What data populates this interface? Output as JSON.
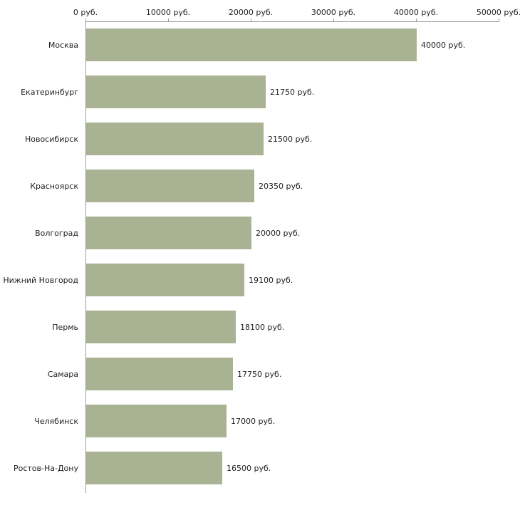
{
  "chart_data": {
    "type": "bar",
    "orientation": "horizontal",
    "title": "",
    "xlabel": "",
    "ylabel": "",
    "categories": [
      "Москва",
      "Екатеринбург",
      "Новосибирск",
      "Красноярск",
      "Волгоград",
      "Нижний Новгород",
      "Пермь",
      "Самара",
      "Челябинск",
      "Ростов-На-Дону"
    ],
    "values": [
      40000,
      21750,
      21500,
      20350,
      20000,
      19100,
      18100,
      17750,
      17000,
      16500
    ],
    "value_labels": [
      "40000 руб.",
      "21750 руб.",
      "21500 руб.",
      "20350 руб.",
      "20000 руб.",
      "19100 руб.",
      "18100 руб.",
      "17750 руб.",
      "17000 руб.",
      "16500 руб."
    ],
    "xlim": [
      0,
      50000
    ],
    "x_ticks": [
      0,
      10000,
      20000,
      30000,
      40000,
      50000
    ],
    "x_tick_labels": [
      "0 руб.",
      "10000 руб.",
      "20000 руб.",
      "30000 руб.",
      "40000 руб.",
      "50000 руб."
    ],
    "bar_color": "#a9b293",
    "axis_color": "#999999",
    "text_color": "#222222",
    "grid": "off",
    "legend": "none",
    "tick_position": "top"
  }
}
